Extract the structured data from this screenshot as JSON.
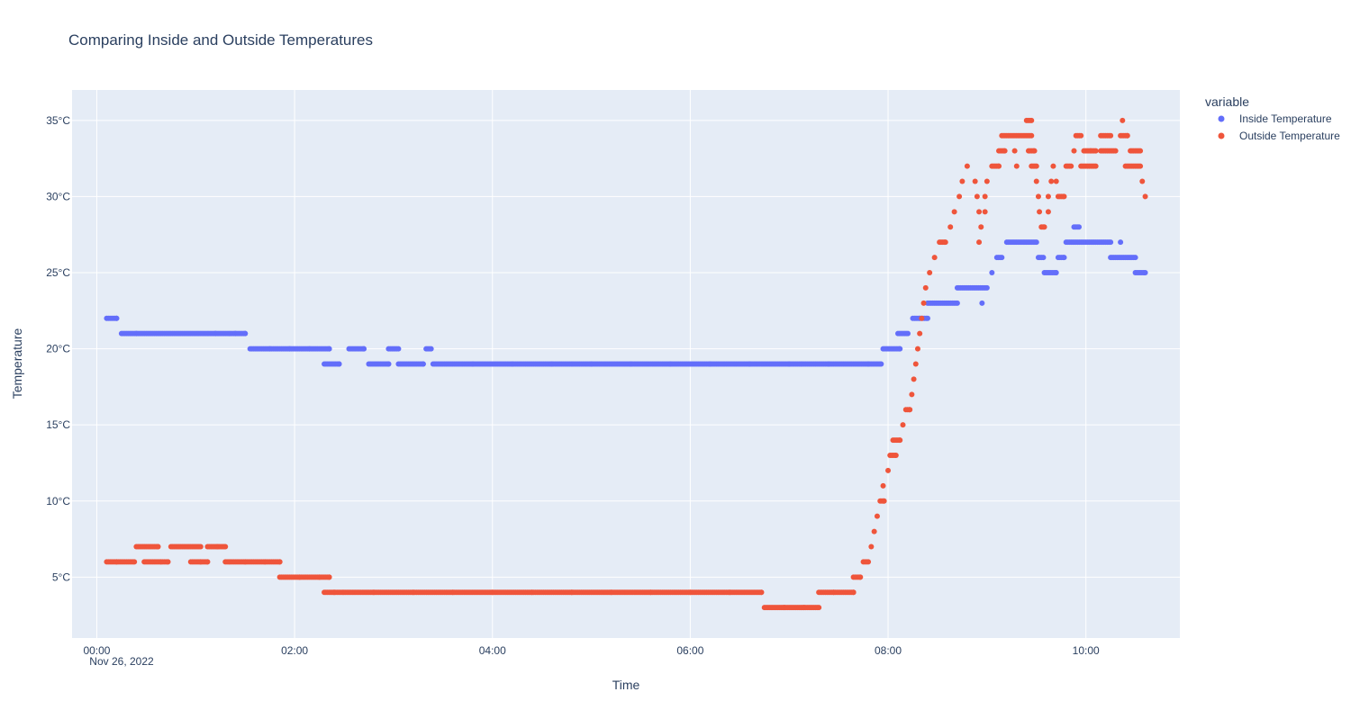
{
  "chart_data": {
    "type": "scatter",
    "title": "Comparing Inside and Outside Temperatures",
    "xlabel": "Time",
    "ylabel": "Temperature",
    "x_date_label": "Nov 26, 2022",
    "x_unit": "hours since 00:00",
    "xlim": [
      -0.25,
      10.95
    ],
    "ylim": [
      1,
      37
    ],
    "x_ticks": [
      {
        "value": 0,
        "label": "00:00"
      },
      {
        "value": 2,
        "label": "02:00"
      },
      {
        "value": 4,
        "label": "04:00"
      },
      {
        "value": 6,
        "label": "06:00"
      },
      {
        "value": 8,
        "label": "08:00"
      },
      {
        "value": 10,
        "label": "10:00"
      }
    ],
    "y_ticks": [
      {
        "value": 5,
        "label": "5°C"
      },
      {
        "value": 10,
        "label": "10°C"
      },
      {
        "value": 15,
        "label": "15°C"
      },
      {
        "value": 20,
        "label": "20°C"
      },
      {
        "value": 25,
        "label": "25°C"
      },
      {
        "value": 30,
        "label": "30°C"
      },
      {
        "value": 35,
        "label": "35°C"
      }
    ],
    "grid": true,
    "legend_title": "variable",
    "legend_position": "top-right",
    "series": [
      {
        "name": "Inside Temperature",
        "color": "#636efa",
        "points": [
          [
            0.1,
            22
          ],
          [
            0.15,
            22
          ],
          [
            0.2,
            22
          ],
          [
            0.25,
            21
          ],
          [
            0.4,
            21
          ],
          [
            0.6,
            21
          ],
          [
            0.8,
            21
          ],
          [
            1.0,
            21
          ],
          [
            1.2,
            21
          ],
          [
            1.4,
            21
          ],
          [
            1.5,
            21
          ],
          [
            1.55,
            20
          ],
          [
            1.75,
            20
          ],
          [
            1.95,
            20
          ],
          [
            2.15,
            20
          ],
          [
            2.35,
            20
          ],
          [
            2.3,
            19
          ],
          [
            2.45,
            19
          ],
          [
            2.55,
            20
          ],
          [
            2.7,
            20
          ],
          [
            2.75,
            19
          ],
          [
            2.95,
            19
          ],
          [
            2.95,
            20
          ],
          [
            3.05,
            20
          ],
          [
            3.05,
            19
          ],
          [
            3.3,
            19
          ],
          [
            3.33,
            20
          ],
          [
            3.38,
            20
          ],
          [
            3.4,
            19
          ],
          [
            3.8,
            19
          ],
          [
            4.2,
            19
          ],
          [
            4.6,
            19
          ],
          [
            5.0,
            19
          ],
          [
            5.4,
            19
          ],
          [
            5.8,
            19
          ],
          [
            6.2,
            19
          ],
          [
            6.6,
            19
          ],
          [
            7.0,
            19
          ],
          [
            7.4,
            19
          ],
          [
            7.8,
            19
          ],
          [
            7.93,
            19
          ],
          [
            7.95,
            20
          ],
          [
            8.05,
            20
          ],
          [
            8.12,
            20
          ],
          [
            8.1,
            21
          ],
          [
            8.2,
            21
          ],
          [
            8.25,
            22
          ],
          [
            8.32,
            22
          ],
          [
            8.4,
            22
          ],
          [
            8.4,
            23
          ],
          [
            8.55,
            23
          ],
          [
            8.7,
            23
          ],
          [
            8.7,
            24
          ],
          [
            8.85,
            24
          ],
          [
            9.0,
            24
          ],
          [
            8.95,
            23
          ],
          [
            9.05,
            25
          ],
          [
            9.1,
            26
          ],
          [
            9.15,
            26
          ],
          [
            9.2,
            27
          ],
          [
            9.35,
            27
          ],
          [
            9.5,
            27
          ],
          [
            9.52,
            26
          ],
          [
            9.57,
            26
          ],
          [
            9.58,
            25
          ],
          [
            9.7,
            25
          ],
          [
            9.72,
            26
          ],
          [
            9.78,
            26
          ],
          [
            9.8,
            27
          ],
          [
            9.95,
            27
          ],
          [
            10.1,
            27
          ],
          [
            10.25,
            27
          ],
          [
            9.88,
            28
          ],
          [
            9.93,
            28
          ],
          [
            10.35,
            27
          ],
          [
            10.25,
            26
          ],
          [
            10.4,
            26
          ],
          [
            10.5,
            26
          ],
          [
            10.5,
            25
          ],
          [
            10.6,
            25
          ]
        ]
      },
      {
        "name": "Outside Temperature",
        "color": "#ef553b",
        "points": [
          [
            0.1,
            6
          ],
          [
            0.2,
            6
          ],
          [
            0.3,
            6
          ],
          [
            0.38,
            6
          ],
          [
            0.4,
            7
          ],
          [
            0.5,
            7
          ],
          [
            0.62,
            7
          ],
          [
            0.48,
            6
          ],
          [
            0.65,
            6
          ],
          [
            0.72,
            6
          ],
          [
            0.75,
            7
          ],
          [
            0.9,
            7
          ],
          [
            1.05,
            7
          ],
          [
            0.95,
            6
          ],
          [
            1.05,
            6
          ],
          [
            1.12,
            6
          ],
          [
            1.12,
            7
          ],
          [
            1.22,
            7
          ],
          [
            1.3,
            7
          ],
          [
            1.3,
            6
          ],
          [
            1.5,
            6
          ],
          [
            1.7,
            6
          ],
          [
            1.85,
            6
          ],
          [
            1.85,
            5
          ],
          [
            2.05,
            5
          ],
          [
            2.25,
            5
          ],
          [
            2.35,
            5
          ],
          [
            2.3,
            4
          ],
          [
            2.4,
            4
          ],
          [
            2.8,
            4
          ],
          [
            3.2,
            4
          ],
          [
            3.6,
            4
          ],
          [
            4.0,
            4
          ],
          [
            4.4,
            4
          ],
          [
            4.8,
            4
          ],
          [
            5.2,
            4
          ],
          [
            5.6,
            4
          ],
          [
            6.0,
            4
          ],
          [
            6.4,
            4
          ],
          [
            6.72,
            4
          ],
          [
            6.75,
            3
          ],
          [
            6.95,
            3
          ],
          [
            7.15,
            3
          ],
          [
            7.3,
            3
          ],
          [
            7.3,
            4
          ],
          [
            7.45,
            4
          ],
          [
            7.65,
            4
          ],
          [
            7.65,
            5
          ],
          [
            7.72,
            5
          ],
          [
            7.75,
            6
          ],
          [
            7.8,
            6
          ],
          [
            7.83,
            7
          ],
          [
            7.86,
            8
          ],
          [
            7.89,
            9
          ],
          [
            7.92,
            10
          ],
          [
            7.96,
            10
          ],
          [
            7.95,
            11
          ],
          [
            8.0,
            12
          ],
          [
            8.02,
            13
          ],
          [
            8.08,
            13
          ],
          [
            8.05,
            14
          ],
          [
            8.12,
            14
          ],
          [
            8.15,
            15
          ],
          [
            8.18,
            16
          ],
          [
            8.22,
            16
          ],
          [
            8.24,
            17
          ],
          [
            8.26,
            18
          ],
          [
            8.28,
            19
          ],
          [
            8.3,
            20
          ],
          [
            8.32,
            21
          ],
          [
            8.34,
            22
          ],
          [
            8.36,
            23
          ],
          [
            8.38,
            24
          ],
          [
            8.42,
            25
          ],
          [
            8.47,
            26
          ],
          [
            8.52,
            27
          ],
          [
            8.58,
            27
          ],
          [
            8.63,
            28
          ],
          [
            8.67,
            29
          ],
          [
            8.72,
            30
          ],
          [
            8.75,
            31
          ],
          [
            8.8,
            32
          ],
          [
            8.88,
            31
          ],
          [
            8.9,
            30
          ],
          [
            8.92,
            29
          ],
          [
            8.94,
            28
          ],
          [
            8.92,
            27
          ],
          [
            8.98,
            30
          ],
          [
            8.98,
            29
          ],
          [
            9.0,
            31
          ],
          [
            9.05,
            32
          ],
          [
            9.12,
            32
          ],
          [
            9.12,
            33
          ],
          [
            9.18,
            33
          ],
          [
            9.15,
            34
          ],
          [
            9.25,
            34
          ],
          [
            9.35,
            34
          ],
          [
            9.45,
            34
          ],
          [
            9.28,
            33
          ],
          [
            9.3,
            32
          ],
          [
            9.4,
            35
          ],
          [
            9.45,
            35
          ],
          [
            9.42,
            33
          ],
          [
            9.48,
            33
          ],
          [
            9.45,
            32
          ],
          [
            9.5,
            32
          ],
          [
            9.5,
            31
          ],
          [
            9.52,
            30
          ],
          [
            9.53,
            29
          ],
          [
            9.55,
            28
          ],
          [
            9.58,
            28
          ],
          [
            9.62,
            29
          ],
          [
            9.62,
            30
          ],
          [
            9.65,
            31
          ],
          [
            9.67,
            32
          ],
          [
            9.7,
            31
          ],
          [
            9.72,
            30
          ],
          [
            9.78,
            30
          ],
          [
            9.8,
            32
          ],
          [
            9.85,
            32
          ],
          [
            9.88,
            33
          ],
          [
            9.9,
            34
          ],
          [
            9.95,
            34
          ],
          [
            9.98,
            33
          ],
          [
            10.05,
            33
          ],
          [
            10.1,
            33
          ],
          [
            9.95,
            32
          ],
          [
            10.1,
            32
          ],
          [
            10.15,
            34
          ],
          [
            10.25,
            34
          ],
          [
            10.15,
            33
          ],
          [
            10.2,
            33
          ],
          [
            10.3,
            33
          ],
          [
            10.35,
            34
          ],
          [
            10.42,
            34
          ],
          [
            10.37,
            35
          ],
          [
            10.4,
            32
          ],
          [
            10.5,
            32
          ],
          [
            10.55,
            32
          ],
          [
            10.45,
            33
          ],
          [
            10.5,
            33
          ],
          [
            10.55,
            33
          ],
          [
            10.57,
            31
          ],
          [
            10.6,
            30
          ]
        ]
      }
    ]
  }
}
